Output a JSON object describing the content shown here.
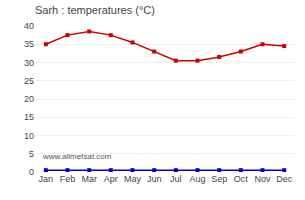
{
  "chart_data": {
    "type": "line",
    "title": "Sarh : temperatures (°C)",
    "categories": [
      "Jan",
      "Feb",
      "Mar",
      "Apr",
      "May",
      "Jun",
      "Jul",
      "Aug",
      "Sep",
      "Oct",
      "Nov",
      "Dec"
    ],
    "series": [
      {
        "color": "#cc0000",
        "marker": "square",
        "values": [
          35,
          37.5,
          38.5,
          37.5,
          35.5,
          33,
          30.5,
          30.5,
          31.5,
          33,
          35,
          34.5
        ]
      },
      {
        "color": "#0000cc",
        "marker": "square",
        "values": [
          0.5,
          0.5,
          0.5,
          0.5,
          0.5,
          0.5,
          0.5,
          0.5,
          0.5,
          0.5,
          0.5,
          0.5
        ]
      }
    ],
    "ylim": [
      0,
      40
    ],
    "yticks": [
      0,
      5,
      10,
      15,
      20,
      25,
      30,
      35,
      40
    ],
    "grid": true,
    "annotations": [
      "www.allmetsat.com"
    ]
  }
}
